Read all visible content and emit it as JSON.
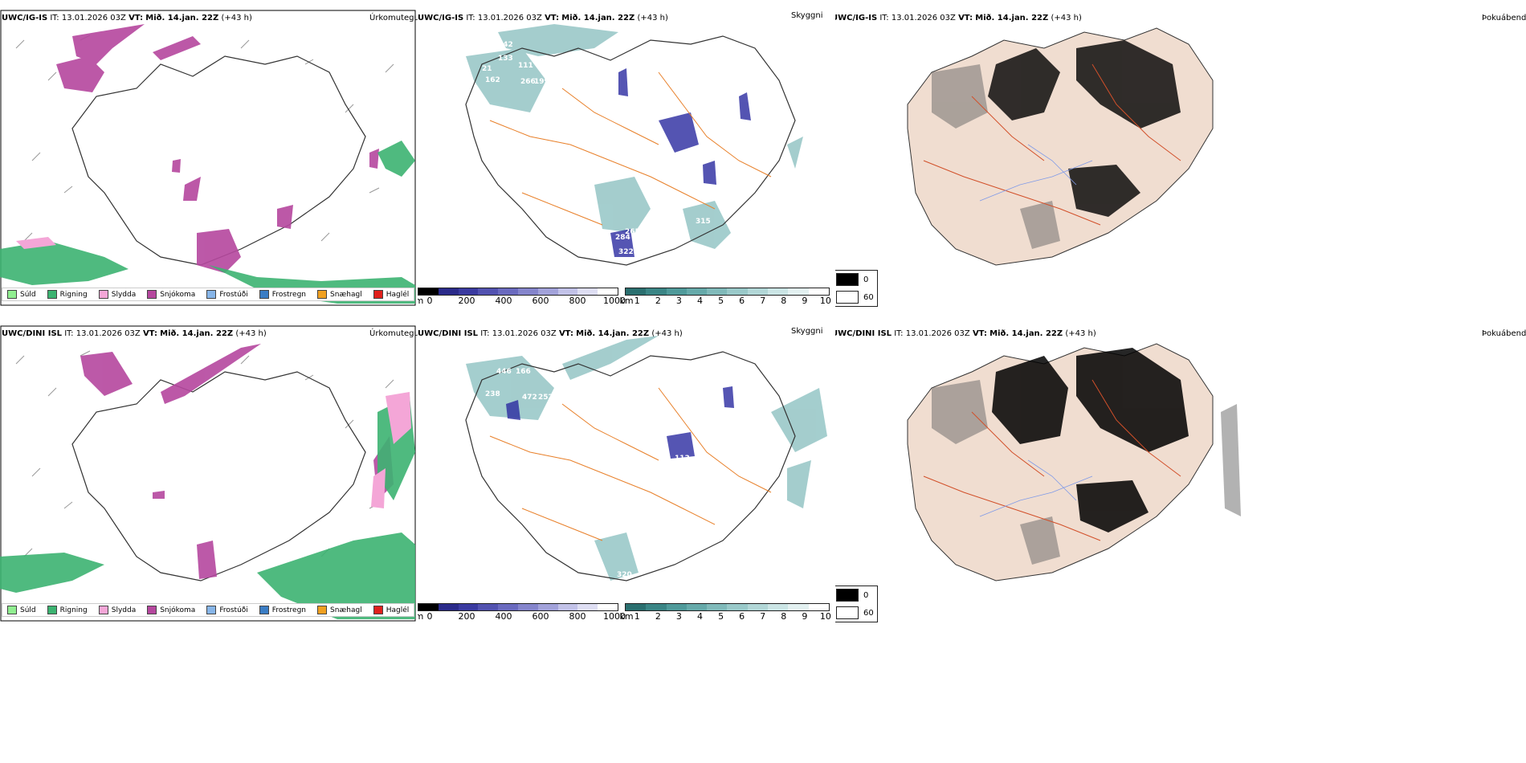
{
  "rows": [
    {
      "model": "UWC/IG-IS",
      "issue_label": "IT:",
      "issue_time": "13.01.2026 03Z",
      "valid_label": "VT:",
      "valid_time": "Mið. 14.jan. 22Z",
      "lead": "(+43 h)",
      "precip_labels": [
        "133",
        "342",
        "21",
        "111",
        "162",
        "266",
        "199",
        "265",
        "284",
        "322",
        "315",
        "231",
        "73"
      ],
      "cloud_labels": []
    },
    {
      "model": "UWC/DINI ISL",
      "issue_label": "IT:",
      "issue_time": "13.01.2026 03Z",
      "valid_label": "VT:",
      "valid_time": "Mið. 14.jan. 22Z",
      "lead": "(+43 h)",
      "precip_labels": [
        "446",
        "166",
        "238",
        "472",
        "252",
        "38",
        "113",
        "320"
      ],
      "cloud_labels": []
    }
  ],
  "panel_titles": {
    "precip": "Úrkomutegund",
    "cloud": "Skyggni",
    "fog": "Þokuábendi"
  },
  "precip_legend": [
    {
      "label": "Súld",
      "color": "#90ee90"
    },
    {
      "label": "Rigning",
      "color": "#3cb371"
    },
    {
      "label": "Slydda",
      "color": "#f4a6d7"
    },
    {
      "label": "Snjókoma",
      "color": "#b5479e"
    },
    {
      "label": "Frostúði",
      "color": "#87b5e8"
    },
    {
      "label": "Frostregn",
      "color": "#3b7dc4"
    },
    {
      "label": "Snæhagl",
      "color": "#f0a020"
    },
    {
      "label": "Haglél",
      "color": "#e0201c"
    }
  ],
  "cloud_base_scale": {
    "unit": "m",
    "ticks": [
      "0",
      "200",
      "400",
      "600",
      "800",
      "1000"
    ],
    "colors": [
      "#000000",
      "#2a2a8a",
      "#3a3aa0",
      "#5252b0",
      "#6a6abf",
      "#8585cc",
      "#a2a2da",
      "#c2c2e8",
      "#dedef3",
      "#ffffff"
    ]
  },
  "visibility_scale": {
    "unit": "km",
    "ticks": [
      "1",
      "2",
      "3",
      "4",
      "5",
      "6",
      "7",
      "8",
      "9",
      "10"
    ],
    "colors": [
      "#2a6f6f",
      "#3a8585",
      "#4f9a9a",
      "#66aaaa",
      "#80baba",
      "#99c9c9",
      "#b2d7d7",
      "#cbe5e5",
      "#e3f1f1",
      "#ffffff"
    ]
  },
  "fog_legend": [
    {
      "label": "0",
      "color": "#000000"
    },
    {
      "label": "60",
      "color": "#ffffff"
    }
  ],
  "colors": {
    "snow": "#b5479e",
    "rain": "#3cb371",
    "sleet": "#f4a6d7",
    "cloud_teal": "#5aa6a6",
    "cloud_blue": "#2a2aa0",
    "road": "#e8802a",
    "land_fog": "#f0ddd0"
  }
}
